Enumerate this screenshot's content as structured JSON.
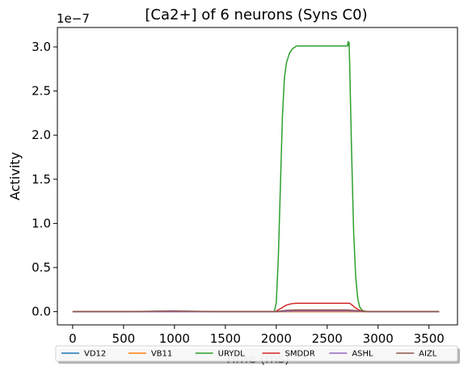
{
  "chart_data": {
    "type": "line",
    "title": "[Ca2+] of 6 neurons (Syns C0)",
    "xlabel": "Time (ms)",
    "ylabel": "Activity",
    "y_offset_label": "1e−7",
    "xlim": [
      -150,
      3780
    ],
    "ylim": [
      -1.5e-08,
      3.22e-07
    ],
    "x_ticks": [
      0,
      500,
      1000,
      1500,
      2000,
      2500,
      3000,
      3500
    ],
    "x_tick_labels": [
      "0",
      "500",
      "1000",
      "1500",
      "2000",
      "2500",
      "3000",
      "3500"
    ],
    "y_ticks": [
      0,
      5e-08,
      1e-07,
      1.5e-07,
      2e-07,
      2.5e-07,
      3e-07
    ],
    "y_tick_labels": [
      "0.0",
      "0.5",
      "1.0",
      "1.5",
      "2.0",
      "2.5",
      "3.0"
    ],
    "grid": false,
    "legend_position": "bottom",
    "series": [
      {
        "name": "VD12",
        "color": "#1f77b4",
        "x": [
          0,
          3600
        ],
        "y": [
          0,
          0
        ]
      },
      {
        "name": "VB11",
        "color": "#ff7f0e",
        "x": [
          0,
          3600
        ],
        "y": [
          0,
          0
        ]
      },
      {
        "name": "URYDL",
        "color": "#2ca02c",
        "x": [
          0,
          1980,
          2000,
          2020,
          2040,
          2060,
          2080,
          2100,
          2130,
          2160,
          2200,
          2300,
          2500,
          2700,
          2705,
          2710,
          2715,
          2720,
          2740,
          2760,
          2780,
          2800,
          2820,
          2850,
          2900,
          3600
        ],
        "y": [
          0,
          0,
          1e-08,
          6e-08,
          1.4e-07,
          2.2e-07,
          2.65e-07,
          2.82e-07,
          2.93e-07,
          2.98e-07,
          3.01e-07,
          3.01e-07,
          3.01e-07,
          3.01e-07,
          3.06e-07,
          3.02e-07,
          3.05e-07,
          2.85e-07,
          1.8e-07,
          9e-08,
          4e-08,
          1.5e-08,
          5e-09,
          1e-09,
          0,
          0
        ]
      },
      {
        "name": "SMDDR",
        "color": "#d62728",
        "x": [
          0,
          1990,
          2050,
          2100,
          2150,
          2200,
          2720,
          2740,
          2780,
          2820,
          2880,
          3600
        ],
        "y": [
          0,
          0,
          4e-09,
          7.5e-09,
          9e-09,
          9.5e-09,
          9.5e-09,
          8e-09,
          4e-09,
          1.5e-09,
          0,
          0
        ]
      },
      {
        "name": "ASHL",
        "color": "#9467bd",
        "x": [
          0,
          2000,
          2200,
          2700,
          2900,
          3600
        ],
        "y": [
          0,
          0,
          8e-10,
          8e-10,
          0,
          0
        ]
      },
      {
        "name": "AIZL",
        "color": "#8c564b",
        "x": [
          0,
          600,
          800,
          1000,
          1200,
          1400,
          2000,
          2100,
          2200,
          2700,
          2800,
          2900,
          3600
        ],
        "y": [
          0,
          0,
          6e-10,
          8e-10,
          5e-10,
          0,
          0,
          1.5e-09,
          2e-09,
          2e-09,
          1e-09,
          0,
          0
        ]
      }
    ]
  }
}
